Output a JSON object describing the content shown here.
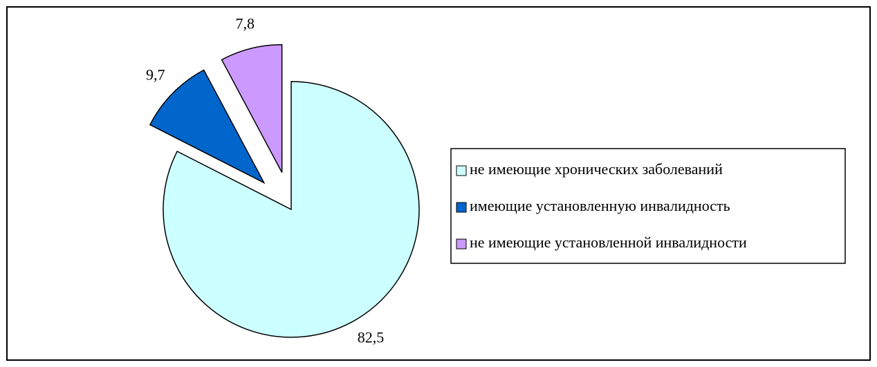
{
  "chart_data": {
    "type": "pie",
    "categories": [
      "не имеющие хронических заболеваний",
      "имеющие установленную инвалидность",
      "не имеющие установленной инвалидности"
    ],
    "values": [
      82.5,
      9.7,
      7.8
    ],
    "value_labels": [
      "82,5",
      "9,7",
      "7,8"
    ],
    "colors": [
      "#ccffff",
      "#0066cc",
      "#cc99ff"
    ],
    "legend": "right"
  }
}
